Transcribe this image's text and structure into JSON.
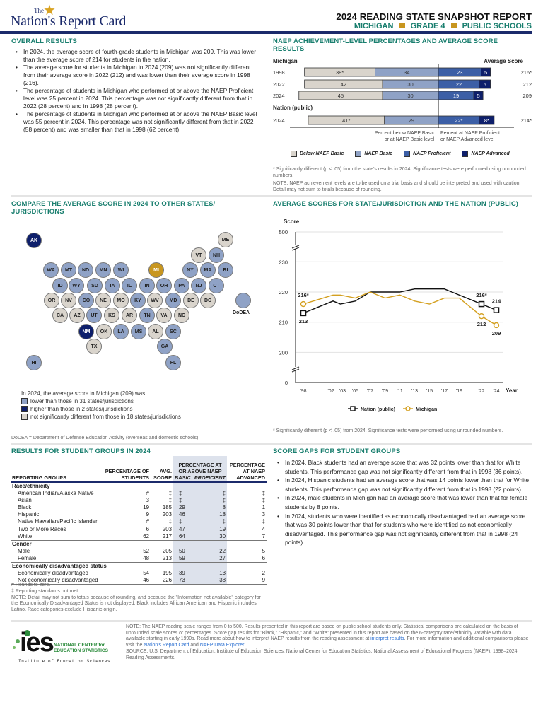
{
  "header": {
    "logo_small": "The",
    "logo_text": "Nation's Report Card",
    "title": "2024 READING STATE SNAPSHOT REPORT",
    "state": "MICHIGAN",
    "grade": "GRADE 4",
    "schools": "PUBLIC SCHOOLS",
    "accent": "#c8961f",
    "navy": "#1b2a6b"
  },
  "overall": {
    "heading": "OVERALL RESULTS",
    "bullets": [
      "In 2024, the average score of fourth-grade students in Michigan was 209. This was lower than the average score of 214 for students in the nation.",
      "The average score for students in Michigan in 2024 (209) was not significantly different from their average score in 2022 (212) and was lower than their average score in 1998 (216).",
      "The percentage of students in Michigan who performed at or above the NAEP Proficient level was 25 percent in 2024. This percentage was not significantly different from that in 2022 (28 percent) and in 1998 (28 percent).",
      "The percentage of students in Michigan who performed at or above the NAEP Basic level was 55 percent in 2024. This percentage was not significantly different from that in 2022 (58 percent) and was smaller than that in 1998 (62 percent)."
    ]
  },
  "achievement": {
    "heading": "NAEP ACHIEVEMENT-LEVEL PERCENTAGES AND AVERAGE SCORE RESULTS",
    "michigan_label": "Michigan",
    "nation_label": "Nation (public)",
    "avg_score_label": "Average Score",
    "caption_left_1": "Percent below NAEP Basic",
    "caption_left_2": "or at NAEP Basic level",
    "caption_right_1": "Percent at NAEP Proficient",
    "caption_right_2": "or NAEP Advanced level",
    "footnote": "* Significantly different (p < .05) from the state's results in 2024. Significance tests were performed using unrounded numbers.",
    "note": "NOTE: NAEP achievement levels are to be used on a trial basis and should be interpreted and used with caution. Detail may not sum to totals because of rounding."
  },
  "chart_data": [
    {
      "type": "bar",
      "orientation": "horizontal-stacked-diverging",
      "legend": [
        "Below NAEP Basic",
        "NAEP Basic",
        "NAEP Proficient",
        "NAEP Advanced"
      ],
      "colors": [
        "#d9d4cc",
        "#8fa2c6",
        "#3c5fa6",
        "#0e1f6b"
      ],
      "rows": [
        {
          "group": "Michigan",
          "year": "1998",
          "values": [
            38,
            34,
            23,
            5
          ],
          "labels": [
            "38*",
            "34",
            "23",
            "5"
          ],
          "avg_score": "216*"
        },
        {
          "group": "Michigan",
          "year": "2022",
          "values": [
            42,
            30,
            22,
            6
          ],
          "labels": [
            "42",
            "30",
            "22",
            "6"
          ],
          "avg_score": "212"
        },
        {
          "group": "Michigan",
          "year": "2024",
          "values": [
            45,
            30,
            19,
            5
          ],
          "labels": [
            "45",
            "30",
            "19",
            "5"
          ],
          "avg_score": "209"
        },
        {
          "group": "Nation (public)",
          "year": "2024",
          "values": [
            41,
            29,
            22,
            8
          ],
          "labels": [
            "41*",
            "29",
            "22*",
            "8*"
          ],
          "avg_score": "214*"
        }
      ]
    },
    {
      "type": "line",
      "title": "AVERAGE SCORES FOR STATE/JURISDICTION AND THE NATION (PUBLIC)",
      "ylabel": "Score",
      "xlabel": "Year",
      "yticks": [
        0,
        200,
        210,
        220,
        230,
        500
      ],
      "axis_breaks": true,
      "x": [
        1998,
        2002,
        2003,
        2005,
        2007,
        2009,
        2011,
        2013,
        2015,
        2017,
        2019,
        2022,
        2024
      ],
      "xtick_labels": [
        "'98",
        "'02",
        "'03",
        "'05",
        "'07",
        "'09",
        "'11",
        "'13",
        "'15",
        "'17",
        "'19",
        "'22",
        "'24"
      ],
      "series": [
        {
          "name": "Nation (public)",
          "color": "#111111",
          "marker": "square",
          "values": [
            213,
            217,
            216,
            217,
            220,
            220,
            220,
            221,
            221,
            221,
            219,
            216,
            214
          ],
          "point_labels": {
            "1998": "213",
            "2022": "216*",
            "2024": "214"
          }
        },
        {
          "name": "Michigan",
          "color": "#d4a020",
          "marker": "circle",
          "values": [
            216,
            219,
            219,
            218,
            220,
            218,
            219,
            217,
            216,
            218,
            218,
            212,
            209
          ],
          "point_labels": {
            "1998": "216*",
            "2022": "212",
            "2024": "209"
          }
        }
      ],
      "footnote": "* Significantly different (p < .05) from 2024. Significance tests were performed using unrounded numbers."
    }
  ],
  "compare": {
    "heading": "COMPARE THE AVERAGE SCORE IN 2024 TO OTHER STATES/ JURISDICTIONS",
    "intro": "In 2024, the average score in Michigan (209) was",
    "legend": [
      {
        "key": "lower",
        "label": "lower than those in 31 states/jurisdictions",
        "color": "#8fa2c6"
      },
      {
        "key": "higher",
        "label": "higher than those in 2 states/jurisdictions",
        "color": "#0e1f6b"
      },
      {
        "key": "ns",
        "label": "not significantly different from those in 18 states/jurisdictions",
        "color": "#d9d4cc"
      }
    ],
    "focus_color": "#c8961f",
    "states": {
      "AK": "higher",
      "ME": "ns",
      "VT": "ns",
      "NH": "lower",
      "WA": "lower",
      "MT": "lower",
      "ND": "lower",
      "MN": "lower",
      "WI": "lower",
      "MI": "focus",
      "NY": "lower",
      "MA": "lower",
      "RI": "lower",
      "ID": "lower",
      "WY": "lower",
      "SD": "lower",
      "IA": "lower",
      "IL": "lower",
      "IN": "lower",
      "OH": "lower",
      "PA": "lower",
      "NJ": "lower",
      "CT": "lower",
      "OR": "ns",
      "NV": "ns",
      "CO": "lower",
      "NE": "ns",
      "MO": "ns",
      "KY": "lower",
      "WV": "ns",
      "MD": "lower",
      "DE": "ns",
      "DC": "ns",
      "CA": "ns",
      "AZ": "ns",
      "UT": "lower",
      "KS": "ns",
      "AR": "ns",
      "TN": "lower",
      "VA": "ns",
      "NC": "ns",
      "NM": "higher",
      "OK": "ns",
      "LA": "lower",
      "MS": "lower",
      "AL": "ns",
      "SC": "lower",
      "TX": "ns",
      "GA": "lower",
      "HI": "lower",
      "FL": "lower",
      "DoDEA": "lower"
    },
    "dodea_label": "DoDEA",
    "dodea_note": "DoDEA = Department of Defense Education Activity (overseas and domestic schools)."
  },
  "groups": {
    "heading": "RESULTS FOR STUDENT GROUPS IN 2024",
    "columns": {
      "groups": "REPORTING GROUPS",
      "pct": "PERCENTAGE OF STUDENTS",
      "avg": "AVG. SCORE",
      "atabove": "PERCENTAGE AT OR ABOVE NAEP",
      "basic": "BASIC",
      "proficient": "PROFICIENT",
      "advanced": "PERCENTAGE AT NAEP ADVANCED"
    },
    "sections": [
      {
        "name": "Race/ethnicity",
        "rows": [
          [
            "American Indian/Alaska Native",
            "#",
            "‡",
            "‡",
            "‡",
            "‡"
          ],
          [
            "Asian",
            "3",
            "‡",
            "‡",
            "‡",
            "‡"
          ],
          [
            "Black",
            "19",
            "185",
            "29",
            "8",
            "1"
          ],
          [
            "Hispanic",
            "9",
            "203",
            "46",
            "18",
            "3"
          ],
          [
            "Native Hawaiian/Pacific Islander",
            "#",
            "‡",
            "‡",
            "‡",
            "‡"
          ],
          [
            "Two or More Races",
            "6",
            "203",
            "47",
            "19",
            "4"
          ],
          [
            "White",
            "62",
            "217",
            "64",
            "30",
            "7"
          ]
        ]
      },
      {
        "name": "Gender",
        "rows": [
          [
            "Male",
            "52",
            "205",
            "50",
            "22",
            "5"
          ],
          [
            "Female",
            "48",
            "213",
            "59",
            "27",
            "6"
          ]
        ]
      },
      {
        "name": "Economically disadvantaged status",
        "rows": [
          [
            "Economically disadvantaged",
            "54",
            "195",
            "39",
            "13",
            "2"
          ],
          [
            "Not economically disadvantaged",
            "46",
            "226",
            "73",
            "38",
            "9"
          ]
        ]
      }
    ],
    "notes": [
      "# Rounds to zero.",
      "‡ Reporting standards not met.",
      "NOTE: Detail may not sum to totals because of rounding, and because the \"Information not available\" category for the Economically Disadvantaged Status is not displayed. Black includes African American and Hispanic includes Latino. Race categories exclude Hispanic origin."
    ]
  },
  "gaps": {
    "heading": "SCORE GAPS FOR STUDENT GROUPS",
    "bullets": [
      "In 2024, Black students had an average score that was 32 points lower than that for White students. This performance gap was not significantly different from that in 1998 (36 points).",
      "In 2024, Hispanic students had an average score that was 14 points lower than that for White students. This performance gap was not significantly different from that in 1998 (22 points).",
      "In 2024, male students in Michigan had an average score that was lower than that for female students by 8 points.",
      "In 2024, students who were identified as economically disadvantaged had an average score that was 30 points lower than that for students who were identified as not economically disadvantaged. This performance gap was not significantly different from that in 1998 (24 points)."
    ]
  },
  "footer": {
    "ies_mark": "ies",
    "ies_name_1": "NATIONAL CENTER for",
    "ies_name_2": "EDUCATION STATISTICS",
    "ies_sub": "Institute of Education Sciences",
    "note_1": "NOTE: The NAEP reading scale ranges from 0 to 500. Results presented in this report are based on public school students only. Statistical comparisons are calculated on the basis of unrounded scale scores or percentages. Score gap results for \"Black,\" \"Hispanic,\" and \"White\" presented in this report are based on the 6-category race/ethnicity variable with data available starting in early 1990s. Read more about how to interpret NAEP results from the reading assessment at ",
    "link_1": "interpret results",
    "note_2": ". For more information and additional comparisons please visit the ",
    "link_2": "Nation's Report Card",
    "note_3": " and ",
    "link_3": "NAEP Data Explorer",
    "note_4": ".",
    "source": "SOURCE: U.S. Department of Education, Institute of Education Sciences, National Center for Education Statistics, National Assessment of Educational Progress (NAEP), 1998–2024 Reading Assessments."
  }
}
